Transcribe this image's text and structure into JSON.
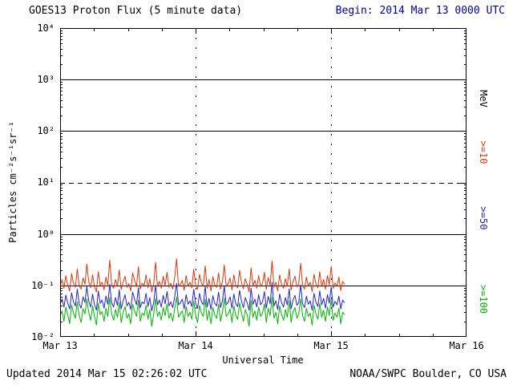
{
  "colors": {
    "begin_text": "#000099",
    "axis": "#000000",
    "background": "#ffffff"
  },
  "footer": {
    "updated": "Updated 2014 Mar 15 02:26:02 UTC",
    "credit": "NOAA/SWPC Boulder, CO USA"
  },
  "chart_data": {
    "type": "line",
    "title": "GOES13 Proton Flux (5 minute data)",
    "begin": "Begin: 2014 Mar 13 0000 UTC",
    "xlabel": "Universal Time",
    "ylabel": "Particles cm⁻²s⁻¹sr⁻¹",
    "units_label": "MeV",
    "x_axis": {
      "span_days": 3,
      "tick_labels": [
        "Mar 13",
        "Mar 14",
        "Mar 15",
        "Mar 16"
      ],
      "vertical_gridlines_days": [
        1,
        2
      ]
    },
    "y_axis": {
      "scale": "log",
      "min": 0.01,
      "max": 10000,
      "tick_labels": [
        "10⁴",
        "10³",
        "10²",
        "10¹",
        "10⁰",
        "10⁻¹",
        "10⁻²"
      ],
      "solid_gridlines": [
        1000,
        100,
        1,
        0.1
      ],
      "dashed_gridline": 10
    },
    "series": [
      {
        "name": "Proton flux >=10 MeV",
        "label": ">=10",
        "color": "#dd3509",
        "scale": 0.001,
        "start_day": 0,
        "end_day": 2.1,
        "values": [
          95,
          130,
          88,
          155,
          102,
          78,
          170,
          110,
          92,
          210,
          98,
          85,
          140,
          105,
          260,
          120,
          90,
          160,
          95,
          75,
          185,
          100,
          115,
          82,
          145,
          98,
          310,
          105,
          88,
          130,
          96,
          200,
          84,
          115,
          150,
          92,
          108,
          78,
          175,
          125,
          95,
          230,
          85,
          110,
          100,
          160,
          90,
          135,
          75,
          105,
          280,
          95,
          120,
          88,
          150,
          100,
          180,
          92,
          110,
          85,
          140,
          330,
          96,
          105,
          125,
          80,
          155,
          98,
          115,
          90,
          205,
          100,
          84,
          165,
          110,
          95,
          240,
          88,
          130,
          78,
          148,
          102,
          92,
          175,
          85,
          118,
          250,
          95,
          108,
          140,
          82,
          160,
          100,
          90,
          195,
          112,
          86,
          135,
          105,
          75,
          220,
          98,
          125,
          88,
          155,
          95,
          110,
          180,
          84,
          142,
          100,
          300,
          92,
          115,
          78,
          160,
          105,
          88,
          135,
          96,
          210,
          82,
          120,
          150,
          94,
          108,
          270,
          100,
          85,
          145,
          98,
          115,
          76,
          165,
          108,
          90,
          185,
          95,
          130,
          84,
          155,
          102,
          235,
          88,
          112,
          96,
          145,
          80,
          120,
          105
        ]
      },
      {
        "name": "Proton flux >=50 MeV",
        "label": ">=50",
        "color": "#2222cc",
        "scale": 0.001,
        "start_day": 0,
        "end_day": 2.1,
        "values": [
          42,
          55,
          38,
          65,
          45,
          35,
          72,
          48,
          40,
          85,
          44,
          36,
          60,
          47,
          95,
          50,
          38,
          68,
          42,
          33,
          78,
          45,
          52,
          36,
          62,
          43,
          105,
          46,
          38,
          58,
          41,
          82,
          35,
          50,
          66,
          40,
          47,
          34,
          74,
          54,
          42,
          90,
          37,
          48,
          44,
          70,
          39,
          58,
          32,
          46,
          100,
          42,
          52,
          38,
          64,
          44,
          76,
          40,
          48,
          37,
          60,
          110,
          42,
          46,
          54,
          35,
          66,
          43,
          50,
          39,
          84,
          44,
          36,
          70,
          48,
          42,
          96,
          38,
          56,
          34,
          63,
          45,
          40,
          74,
          37,
          51,
          98,
          42,
          47,
          60,
          36,
          68,
          44,
          39,
          80,
          49,
          37,
          58,
          46,
          33,
          88,
          43,
          54,
          38,
          66,
          42,
          48,
          76,
          36,
          61,
          44,
          115,
          40,
          50,
          34,
          68,
          46,
          38,
          58,
          42,
          86,
          35,
          52,
          64,
          41,
          47,
          102,
          44,
          37,
          62,
          43,
          50,
          33,
          70,
          47,
          39,
          78,
          42,
          56,
          36,
          66,
          45,
          92,
          38,
          49,
          42,
          62,
          35,
          52,
          46
        ]
      },
      {
        "name": "Proton flux >=100 MeV",
        "label": ">=100",
        "color": "#00b400",
        "scale": 0.001,
        "start_day": 0,
        "end_day": 2.1,
        "values": [
          25,
          32,
          20,
          38,
          27,
          18,
          42,
          29,
          23,
          48,
          26,
          19,
          35,
          28,
          55,
          30,
          21,
          40,
          25,
          17,
          45,
          27,
          31,
          20,
          36,
          25,
          58,
          28,
          21,
          34,
          24,
          47,
          19,
          30,
          39,
          23,
          28,
          18,
          43,
          32,
          25,
          52,
          20,
          29,
          26,
          41,
          22,
          34,
          16,
          27,
          56,
          25,
          31,
          21,
          37,
          26,
          44,
          23,
          29,
          20,
          35,
          60,
          24,
          28,
          32,
          19,
          39,
          25,
          30,
          22,
          49,
          26,
          19,
          41,
          29,
          25,
          54,
          21,
          33,
          18,
          37,
          27,
          23,
          43,
          20,
          30,
          57,
          25,
          28,
          35,
          19,
          40,
          26,
          22,
          46,
          29,
          20,
          34,
          27,
          16,
          51,
          24,
          32,
          21,
          38,
          25,
          29,
          44,
          19,
          36,
          26,
          59,
          23,
          30,
          18,
          40,
          27,
          21,
          34,
          24,
          50,
          19,
          31,
          37,
          23,
          28,
          55,
          26,
          20,
          36,
          25,
          29,
          17,
          41,
          28,
          22,
          45,
          24,
          33,
          20,
          38,
          26,
          53,
          21,
          29,
          24,
          36,
          18,
          30,
          27
        ]
      }
    ]
  }
}
